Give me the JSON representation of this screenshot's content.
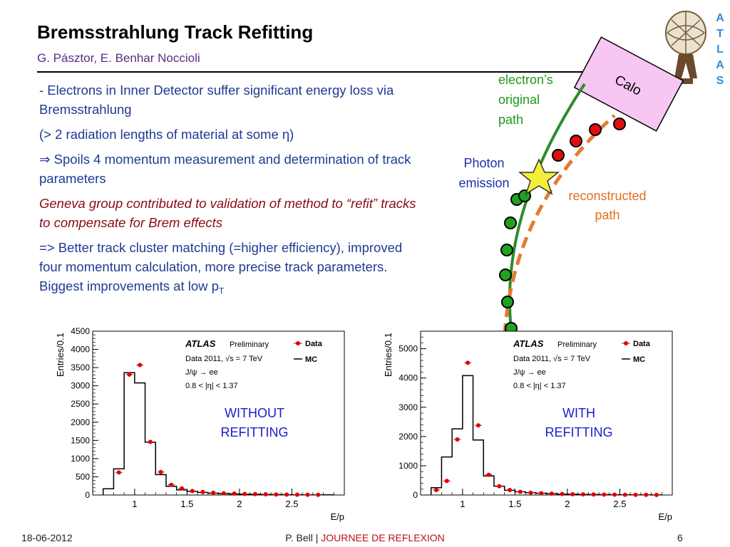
{
  "slide": {
    "title": "Bremsstrahlung Track Refitting",
    "authors": "G. Pásztor, E. Benhar Noccioli"
  },
  "bullets": [
    {
      "text": "- Electrons in Inner Detector suffer significant energy loss via Bremsstrahlung",
      "style": "blue"
    },
    {
      "text": "(> 2 radiation lengths of material at some η)",
      "style": "blue"
    },
    {
      "text": "⇒ Spoils 4 momentum measurement and determination of track parameters",
      "style": "blue"
    },
    {
      "text": "Geneva group contributed to validation of method to “refit” tracks to compensate for Brem effects",
      "style": "red"
    },
    {
      "text": "=> Better track cluster matching (=higher efficiency), improved four momentum calculation, more precise track parameters. Biggest improvements at low p",
      "sub": "T",
      "style": "blue"
    }
  ],
  "logo": {
    "letters": [
      "A",
      "T",
      "L",
      "A",
      "S"
    ]
  },
  "diagram": {
    "calo_label": "Calo",
    "electron_label_lines": [
      "electron’s",
      "original",
      "path"
    ],
    "photon_label_lines": [
      "Photon",
      "emission"
    ],
    "reco_label_lines": [
      "reconstructed",
      "path"
    ],
    "colors": {
      "calo_fill": "#f7c6f2",
      "electron": "#2e8b2e",
      "reco": "#e57a2e",
      "hit_green": "#1ea31e",
      "hit_red": "#e01010",
      "star": "#f4ee3a"
    }
  },
  "chart_data": [
    {
      "type": "bar",
      "plot_label_lines": [
        "WITHOUT",
        "REFITTING"
      ],
      "xlabel": "E/p",
      "ylabel": "Entries/0.1",
      "xlim": [
        0.6,
        3.0
      ],
      "ylim": [
        0,
        4500
      ],
      "xticks": [
        "1",
        "1.5",
        "2",
        "2.5"
      ],
      "yticks": [
        "0",
        "500",
        "1000",
        "1500",
        "2000",
        "2500",
        "3000",
        "3500",
        "4000",
        "4500"
      ],
      "legend_title": "ATLAS",
      "legend_prelim": "Preliminary",
      "legend_lines": [
        "Data 2011, √s = 7 TeV",
        "J/ψ → ee",
        "0.8 < |η| < 1.37"
      ],
      "legend_data": "Data",
      "legend_mc": "MC",
      "mc_bins_lo": [
        0.7,
        0.8,
        0.9,
        1.0,
        1.1,
        1.2,
        1.3,
        1.4,
        1.5,
        1.6,
        1.7,
        1.8,
        1.9,
        2.0,
        2.1,
        2.2,
        2.3,
        2.4,
        2.5,
        2.6,
        2.7,
        2.8
      ],
      "mc_values": [
        170,
        720,
        3360,
        3080,
        1450,
        560,
        240,
        140,
        100,
        70,
        50,
        40,
        30,
        25,
        20,
        15,
        12,
        10,
        8,
        6,
        5,
        4
      ],
      "data_x": [
        0.85,
        0.95,
        1.05,
        1.15,
        1.25,
        1.35,
        1.45,
        1.55,
        1.65,
        1.75,
        1.85,
        1.95,
        2.05,
        2.15,
        2.25,
        2.35,
        2.45,
        2.55,
        2.65,
        2.75
      ],
      "data_y": [
        620,
        3310,
        3570,
        1460,
        630,
        280,
        180,
        110,
        80,
        60,
        50,
        40,
        30,
        25,
        20,
        15,
        12,
        10,
        8,
        6
      ]
    },
    {
      "type": "bar",
      "plot_label_lines": [
        "WITH",
        "REFITTING"
      ],
      "xlabel": "E/p",
      "ylabel": "Entries/0.1",
      "xlim": [
        0.6,
        3.0
      ],
      "ylim": [
        0,
        5600
      ],
      "xticks": [
        "1",
        "1.5",
        "2",
        "2.5"
      ],
      "yticks": [
        "0",
        "1000",
        "2000",
        "3000",
        "4000",
        "5000"
      ],
      "legend_title": "ATLAS",
      "legend_prelim": "Preliminary",
      "legend_lines": [
        "Data 2011, √s = 7 TeV",
        "J/ψ → ee",
        "0.8 < |η| < 1.37"
      ],
      "legend_data": "Data",
      "legend_mc": "MC",
      "mc_bins_lo": [
        0.7,
        0.8,
        0.9,
        1.0,
        1.1,
        1.2,
        1.3,
        1.4,
        1.5,
        1.6,
        1.7,
        1.8,
        1.9,
        2.0,
        2.1,
        2.2,
        2.3,
        2.4,
        2.5,
        2.6,
        2.7,
        2.8
      ],
      "mc_values": [
        250,
        1300,
        2260,
        4080,
        1880,
        650,
        300,
        160,
        110,
        80,
        60,
        45,
        35,
        28,
        22,
        17,
        14,
        11,
        9,
        7,
        5,
        4
      ],
      "data_x": [
        0.75,
        0.85,
        0.95,
        1.05,
        1.15,
        1.25,
        1.35,
        1.45,
        1.55,
        1.65,
        1.75,
        1.85,
        1.95,
        2.05,
        2.15,
        2.25,
        2.35,
        2.45,
        2.55,
        2.65,
        2.75,
        2.85
      ],
      "data_y": [
        170,
        480,
        1900,
        4520,
        2380,
        690,
        300,
        170,
        110,
        80,
        60,
        45,
        35,
        28,
        22,
        17,
        14,
        11,
        9,
        7,
        5,
        4
      ]
    }
  ],
  "footer": {
    "date": "18-06-2012",
    "presenter": "P. Bell",
    "separator": "|",
    "event": "JOURNEE DE REFLEXION",
    "page": "6"
  }
}
